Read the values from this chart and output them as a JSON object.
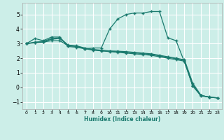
{
  "background_color": "#cceee8",
  "grid_color": "#ffffff",
  "line_color": "#1a7a6e",
  "xlabel": "Humidex (Indice chaleur)",
  "xlim": [
    -0.5,
    23.5
  ],
  "ylim": [
    -1.5,
    5.8
  ],
  "yticks": [
    -1,
    0,
    1,
    2,
    3,
    4,
    5
  ],
  "xticks": [
    0,
    1,
    2,
    3,
    4,
    5,
    6,
    7,
    8,
    9,
    10,
    11,
    12,
    13,
    14,
    15,
    16,
    17,
    18,
    19,
    20,
    21,
    22,
    23
  ],
  "series": [
    {
      "x": [
        0,
        1,
        2,
        3,
        4,
        5,
        6,
        7,
        8,
        9,
        10,
        11,
        12,
        13,
        14,
        15,
        16,
        17,
        18,
        19,
        20,
        21,
        22
      ],
      "y": [
        3.0,
        3.35,
        3.2,
        3.45,
        3.45,
        2.8,
        2.75,
        2.65,
        2.7,
        2.7,
        4.0,
        4.7,
        5.0,
        5.1,
        5.1,
        5.2,
        5.2,
        3.4,
        3.2,
        1.75,
        0.1,
        -0.6,
        -0.65
      ]
    },
    {
      "x": [
        0,
        1,
        2,
        3,
        4,
        5,
        6,
        7,
        8,
        9,
        10,
        11,
        12,
        13,
        14,
        15,
        16,
        17,
        18,
        19,
        20,
        21,
        22,
        23
      ],
      "y": [
        3.0,
        3.05,
        3.1,
        3.2,
        3.2,
        2.85,
        2.8,
        2.65,
        2.55,
        2.5,
        2.45,
        2.4,
        2.35,
        2.3,
        2.25,
        2.2,
        2.1,
        2.0,
        1.9,
        1.8,
        0.1,
        -0.55,
        -0.68,
        -0.72
      ]
    },
    {
      "x": [
        0,
        1,
        2,
        3,
        4,
        5,
        6,
        7,
        8,
        9,
        10,
        11,
        12,
        13,
        14,
        15,
        16,
        17,
        18,
        19,
        20,
        21,
        22,
        23
      ],
      "y": [
        3.0,
        3.1,
        3.15,
        3.35,
        3.4,
        2.9,
        2.85,
        2.7,
        2.6,
        2.55,
        2.5,
        2.48,
        2.45,
        2.4,
        2.35,
        2.3,
        2.2,
        2.1,
        2.0,
        1.9,
        0.3,
        -0.55,
        -0.68,
        -0.72
      ]
    },
    {
      "x": [
        0,
        1,
        2,
        3,
        4,
        5,
        6,
        7,
        8,
        9,
        10,
        11,
        12,
        13,
        14,
        15,
        16,
        17,
        18,
        19,
        20,
        21,
        22,
        23
      ],
      "y": [
        3.0,
        3.08,
        3.12,
        3.3,
        3.35,
        2.88,
        2.82,
        2.68,
        2.58,
        2.52,
        2.47,
        2.44,
        2.41,
        2.36,
        2.31,
        2.26,
        2.16,
        2.06,
        1.96,
        1.86,
        0.2,
        -0.55,
        -0.68,
        -0.72
      ]
    }
  ]
}
